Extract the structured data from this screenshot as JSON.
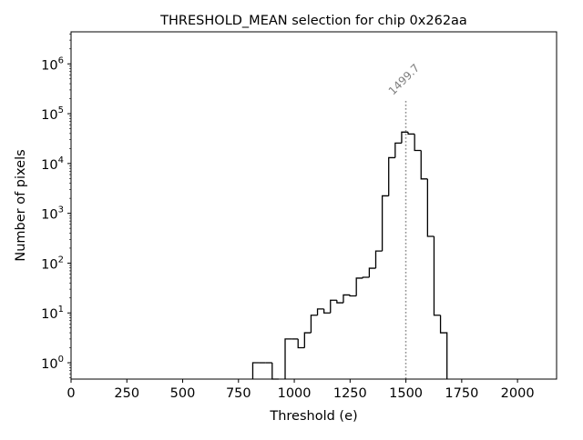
{
  "chart_data": {
    "type": "bar",
    "style": "step-histogram",
    "title": "THRESHOLD_MEAN selection for chip 0x262aa",
    "xlabel": "Threshold (e)",
    "ylabel": "Number of pixels",
    "xlim": [
      0,
      2175
    ],
    "ylim": [
      0.47,
      4400000
    ],
    "yscale": "log",
    "xticks": [
      0,
      250,
      500,
      750,
      1000,
      1250,
      1500,
      1750,
      2000
    ],
    "xtick_labels": [
      "0",
      "250",
      "500",
      "750",
      "1000",
      "1250",
      "1500",
      "1750",
      "2000"
    ],
    "yticks": [
      1,
      10,
      100,
      1000,
      10000,
      100000,
      1000000
    ],
    "ytick_labels": [
      {
        "base": "10",
        "exp": "0"
      },
      {
        "base": "10",
        "exp": "1"
      },
      {
        "base": "10",
        "exp": "2"
      },
      {
        "base": "10",
        "exp": "3"
      },
      {
        "base": "10",
        "exp": "4"
      },
      {
        "base": "10",
        "exp": "5"
      },
      {
        "base": "10",
        "exp": "6"
      }
    ],
    "bin_start": 814,
    "bin_width": 29,
    "values": [
      1,
      1,
      1,
      0,
      0,
      3,
      3,
      2,
      4,
      9,
      12,
      10,
      18,
      16,
      23,
      22,
      50,
      52,
      79,
      175,
      2240,
      13100,
      25700,
      42700,
      39000,
      18300,
      4900,
      345,
      9,
      4
    ],
    "marker": {
      "value": 1499.7,
      "label": "1499.7",
      "color": "#808080",
      "top": 180000
    },
    "line_color": "#000000",
    "grid": false
  }
}
